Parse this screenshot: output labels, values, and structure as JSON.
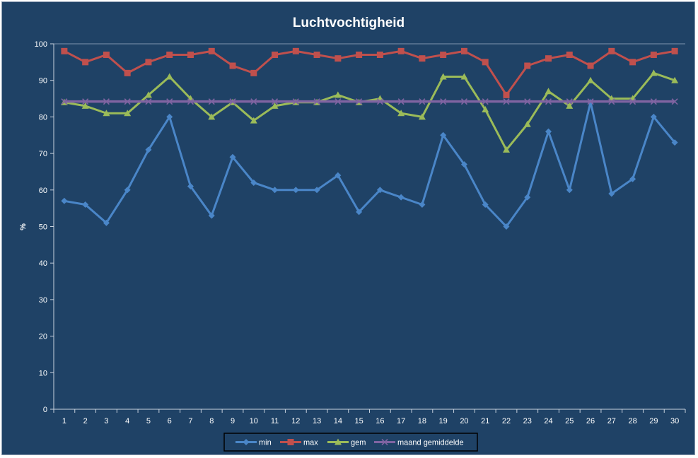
{
  "chart_data": {
    "type": "line",
    "title": "Luchtvochtigheid",
    "ylabel": "%",
    "xlabel": "",
    "ylim": [
      0,
      100
    ],
    "yticks": [
      0,
      10,
      20,
      30,
      40,
      50,
      60,
      70,
      80,
      90,
      100
    ],
    "categories": [
      "1",
      "2",
      "3",
      "4",
      "5",
      "6",
      "7",
      "8",
      "9",
      "10",
      "11",
      "12",
      "13",
      "14",
      "15",
      "16",
      "17",
      "18",
      "19",
      "20",
      "21",
      "22",
      "23",
      "24",
      "25",
      "26",
      "27",
      "28",
      "29",
      "30"
    ],
    "grid": "horizontal-top",
    "legend_position": "bottom",
    "series": [
      {
        "name": "min",
        "color": "#4a86c8",
        "marker": "diamond",
        "values": [
          57,
          56,
          51,
          60,
          71,
          80,
          61,
          53,
          69,
          62,
          60,
          60,
          60,
          64,
          54,
          60,
          58,
          56,
          75,
          67,
          56,
          50,
          58,
          76,
          60,
          84,
          59,
          63,
          80,
          73
        ]
      },
      {
        "name": "max",
        "color": "#c0504d",
        "marker": "square",
        "values": [
          98,
          95,
          97,
          92,
          95,
          97,
          97,
          98,
          94,
          92,
          97,
          98,
          97,
          96,
          97,
          97,
          98,
          96,
          97,
          98,
          95,
          86,
          94,
          96,
          97,
          94,
          98,
          95,
          97,
          98
        ]
      },
      {
        "name": "gem",
        "color": "#9bbb59",
        "marker": "triangle",
        "values": [
          84,
          83,
          81,
          81,
          86,
          91,
          85,
          80,
          84,
          79,
          83,
          84,
          84,
          86,
          84,
          85,
          81,
          80,
          91,
          91,
          82,
          71,
          78,
          87,
          83,
          90,
          85,
          85,
          92,
          90
        ]
      },
      {
        "name": "maand gemiddelde",
        "color": "#8064a2",
        "marker": "x",
        "values": [
          84.2,
          84.2,
          84.2,
          84.2,
          84.2,
          84.2,
          84.2,
          84.2,
          84.2,
          84.2,
          84.2,
          84.2,
          84.2,
          84.2,
          84.2,
          84.2,
          84.2,
          84.2,
          84.2,
          84.2,
          84.2,
          84.2,
          84.2,
          84.2,
          84.2,
          84.2,
          84.2,
          84.2,
          84.2,
          84.2
        ]
      }
    ]
  }
}
